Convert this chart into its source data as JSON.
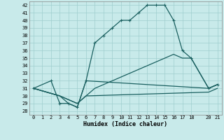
{
  "xlabel": "Humidex (Indice chaleur)",
  "bg_color": "#c8eaea",
  "grid_color": "#9fcece",
  "line_color": "#1a6060",
  "xlim": [
    -0.5,
    21.5
  ],
  "ylim": [
    27.5,
    42.5
  ],
  "xticks": [
    0,
    1,
    2,
    3,
    4,
    5,
    6,
    7,
    8,
    9,
    10,
    11,
    12,
    13,
    14,
    15,
    16,
    17,
    18,
    20,
    21
  ],
  "yticks": [
    28,
    29,
    30,
    31,
    32,
    33,
    34,
    35,
    36,
    37,
    38,
    39,
    40,
    41,
    42
  ],
  "line1_x": [
    0,
    2,
    3,
    4,
    5,
    6,
    7,
    8,
    9,
    10,
    11,
    12,
    13,
    14,
    15,
    16,
    17,
    18,
    20,
    21
  ],
  "line1_y": [
    31,
    32,
    29,
    29,
    28.5,
    32,
    37,
    38,
    39,
    40,
    40,
    41,
    42,
    42,
    42,
    40,
    36,
    35,
    31,
    31.5
  ],
  "line2_x": [
    0,
    3,
    4,
    5,
    6,
    20,
    21
  ],
  "line2_y": [
    31,
    30,
    29,
    28.5,
    32,
    31,
    31.5
  ],
  "line3_x": [
    0,
    3,
    4,
    5,
    6,
    7,
    8,
    9,
    10,
    11,
    12,
    13,
    14,
    15,
    16,
    17,
    18,
    20,
    21
  ],
  "line3_y": [
    31,
    30,
    29.5,
    29,
    30,
    31,
    31.5,
    32,
    32.5,
    33,
    33.5,
    34,
    34.5,
    35,
    35.5,
    35,
    35,
    31,
    31.5
  ],
  "line4_x": [
    0,
    3,
    4,
    5,
    6,
    20,
    21
  ],
  "line4_y": [
    31,
    30,
    29.5,
    29,
    30,
    30.5,
    31
  ],
  "marker": "+"
}
